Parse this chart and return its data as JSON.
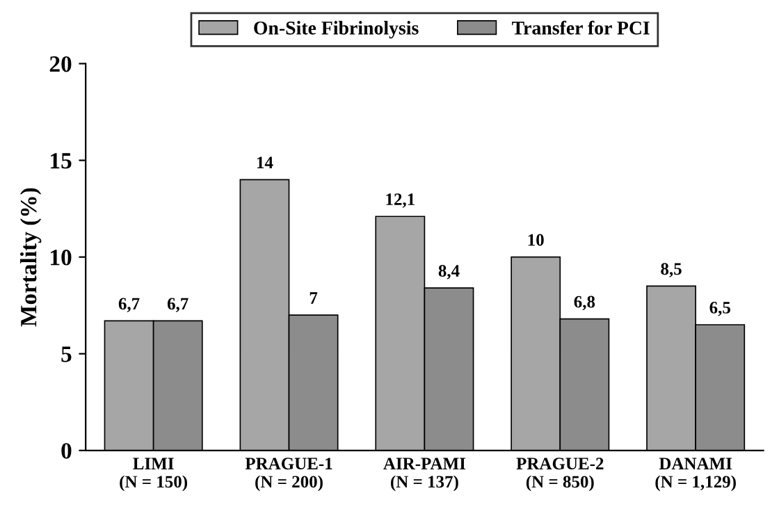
{
  "chart_data": {
    "type": "bar",
    "ylabel": "Mortality (%)",
    "categories": [
      "LIMI\n(N = 150)",
      "PRAGUE-1\n(N = 200)",
      "AIR-PAMI\n(N = 137)",
      "PRAGUE-2\n(N = 850)",
      "DANAMI\n(N = 1,129)"
    ],
    "series": [
      {
        "name": "On-Site Fibrinolysis",
        "color": "#a6a6a6",
        "values": [
          6.7,
          14,
          12.1,
          10,
          8.5
        ],
        "value_labels": [
          "6,7",
          "14",
          "12,1",
          "10",
          "8,5"
        ]
      },
      {
        "name": "Transfer for PCI",
        "color": "#8c8c8c",
        "values": [
          6.7,
          7,
          8.4,
          6.8,
          6.5
        ],
        "value_labels": [
          "6,7",
          "7",
          "8,4",
          "6,8",
          "6,5"
        ]
      }
    ],
    "ylim": [
      0,
      20
    ],
    "yticks": [
      0,
      5,
      10,
      15,
      20
    ],
    "grid": false,
    "legend": "top"
  }
}
